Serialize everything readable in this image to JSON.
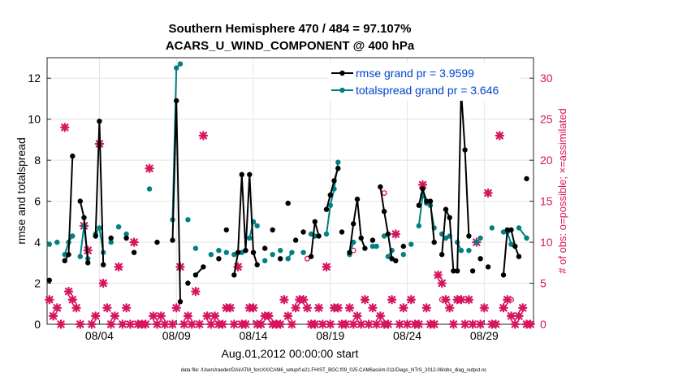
{
  "chart_data": {
    "type": "line",
    "title_line1": "Southern Hemisphere 470 / 484 = 97.107%",
    "title_line2": "ACARS_U_WIND_COMPONENT @ 400 hPa",
    "xlabel": "Aug.01,2012 00:00:00 start",
    "ylabel_left": "rmse and totalspread",
    "ylabel_right": "# of obs: o=possible; ×=assimilated",
    "footer": "data file: /Users/raeder/DAI/ATM_forcXX/CAM6_setup/f.e21.FHIST_BGC.f09_025.CAM6assim.011/Diags_NTrS_2012-08/obs_diag_output.nc",
    "xlim": [
      0.6,
      32.2
    ],
    "ylim_left": [
      0,
      13
    ],
    "ylim_right": [
      0,
      32.5
    ],
    "x_ticks": [
      {
        "v": 4,
        "label": "08/04"
      },
      {
        "v": 9,
        "label": "08/09"
      },
      {
        "v": 14,
        "label": "08/14"
      },
      {
        "v": 19,
        "label": "08/19"
      },
      {
        "v": 24,
        "label": "08/24"
      },
      {
        "v": 29,
        "label": "08/29"
      }
    ],
    "y_ticks_left": [
      "0",
      "2",
      "4",
      "6",
      "8",
      "10",
      "12"
    ],
    "y_ticks_right": [
      "0",
      "5",
      "10",
      "15",
      "20",
      "25",
      "30"
    ],
    "legend": [
      {
        "label": "rmse grand pr = 3.9599",
        "color": "#000000"
      },
      {
        "label": "totalspread grand pr = 3.646",
        "color": "#008080"
      }
    ],
    "colors": {
      "rmse": "#000000",
      "spread": "#008080",
      "obs": "#d6145f",
      "legend_text": "#0044cc"
    },
    "series": [
      {
        "name": "rmse",
        "segments": [
          [
            [
              0.75,
              2.15
            ]
          ],
          [
            [
              1.75,
              3.1
            ],
            [
              2.0,
              3.4
            ],
            [
              2.25,
              8.2
            ]
          ],
          [
            [
              2.75,
              6.0
            ],
            [
              3.0,
              5.2
            ],
            [
              3.25,
              3.0
            ]
          ],
          [
            [
              3.75,
              4.3
            ],
            [
              4.0,
              9.9
            ],
            [
              4.25,
              2.9
            ]
          ],
          [
            [
              4.75,
              4.2
            ]
          ],
          [
            [
              5.75,
              4.2
            ]
          ],
          [
            [
              6.25,
              3.5
            ]
          ],
          [
            [
              7.75,
              4.0
            ]
          ],
          [
            [
              8.75,
              4.1
            ],
            [
              9.0,
              10.9
            ],
            [
              9.25,
              1.1
            ]
          ],
          [
            [
              9.75,
              2.0
            ]
          ],
          [
            [
              10.25,
              2.4
            ],
            [
              10.75,
              2.8
            ]
          ],
          [
            [
              11.75,
              3.2
            ]
          ],
          [
            [
              12.25,
              4.6
            ]
          ],
          [
            [
              12.75,
              2.4
            ],
            [
              13.0,
              3.5
            ],
            [
              13.25,
              7.3
            ],
            [
              13.5,
              3.6
            ],
            [
              13.75,
              7.3
            ],
            [
              14.0,
              3.5
            ],
            [
              14.25,
              2.9
            ]
          ],
          [
            [
              14.75,
              3.7
            ]
          ],
          [
            [
              15.25,
              4.6
            ]
          ],
          [
            [
              15.75,
              3.2
            ]
          ],
          [
            [
              16.25,
              5.9
            ]
          ],
          [
            [
              16.75,
              4.1
            ]
          ],
          [
            [
              17.25,
              4.5
            ]
          ],
          [
            [
              17.75,
              3.3
            ],
            [
              18.0,
              5.0
            ],
            [
              18.25,
              4.3
            ]
          ],
          [
            [
              18.75,
              5.6
            ],
            [
              19.0,
              6.3
            ],
            [
              19.25,
              7.0
            ],
            [
              19.5,
              7.6
            ]
          ],
          [
            [
              19.75,
              4.5
            ]
          ],
          [
            [
              20.25,
              3.5
            ],
            [
              20.5,
              4.9
            ],
            [
              20.75,
              6.1
            ],
            [
              21.0,
              4.2
            ],
            [
              21.25,
              3.7
            ]
          ],
          [
            [
              21.75,
              4.1
            ]
          ],
          [
            [
              22.25,
              6.7
            ],
            [
              22.5,
              5.5
            ],
            [
              22.75,
              4.4
            ],
            [
              23.0,
              3.2
            ],
            [
              23.25,
              3.1
            ]
          ],
          [
            [
              23.75,
              3.8
            ]
          ],
          [
            [
              24.75,
              5.8
            ],
            [
              25.0,
              6.6
            ],
            [
              25.25,
              6.0
            ],
            [
              25.5,
              6.0
            ],
            [
              25.75,
              4.0
            ]
          ],
          [
            [
              26.25,
              3.4
            ],
            [
              26.5,
              5.6
            ],
            [
              26.75,
              5.2
            ],
            [
              27.0,
              2.6
            ],
            [
              27.25,
              2.6
            ],
            [
              27.5,
              11.4
            ],
            [
              27.75,
              8.5
            ],
            [
              28.0,
              4.3
            ]
          ],
          [
            [
              28.25,
              2.6
            ]
          ],
          [
            [
              28.75,
              3.2
            ]
          ],
          [
            [
              29.25,
              2.8
            ]
          ],
          [
            [
              30.25,
              2.4
            ],
            [
              30.5,
              4.6
            ],
            [
              30.75,
              4.6
            ],
            [
              31.0,
              3.8
            ],
            [
              31.25,
              3.3
            ]
          ],
          [
            [
              31.75,
              7.1
            ]
          ]
        ]
      },
      {
        "name": "totalspread",
        "segments": [
          [
            [
              0.75,
              3.9
            ]
          ],
          [
            [
              1.25,
              4.0
            ]
          ],
          [
            [
              1.75,
              3.4
            ],
            [
              2.0,
              4.0
            ],
            [
              2.25,
              4.3
            ]
          ],
          [
            [
              2.75,
              3.3
            ],
            [
              3.0,
              4.8
            ],
            [
              3.25,
              3.2
            ]
          ],
          [
            [
              3.75,
              4.4
            ],
            [
              4.0,
              4.7
            ],
            [
              4.25,
              3.5
            ]
          ],
          [
            [
              4.75,
              4.0
            ]
          ],
          [
            [
              5.25,
              4.75
            ]
          ],
          [
            [
              5.75,
              4.4
            ]
          ],
          [
            [
              7.25,
              6.6
            ]
          ],
          [
            [
              8.75,
              5.1
            ],
            [
              9.0,
              12.5
            ],
            [
              9.25,
              12.7
            ]
          ],
          [
            [
              9.75,
              5.1
            ]
          ],
          [
            [
              10.25,
              3.7
            ]
          ],
          [
            [
              11.25,
              3.4
            ]
          ],
          [
            [
              11.75,
              3.6
            ]
          ],
          [
            [
              12.25,
              3.5
            ]
          ],
          [
            [
              12.75,
              3.4
            ],
            [
              13.25,
              3.5
            ]
          ],
          [
            [
              13.75,
              4.2
            ],
            [
              14.0,
              5.0
            ],
            [
              14.25,
              4.8
            ]
          ],
          [
            [
              14.75,
              3.1
            ]
          ],
          [
            [
              15.25,
              3.4
            ]
          ],
          [
            [
              15.75,
              3.6
            ]
          ],
          [
            [
              16.25,
              3.2
            ],
            [
              16.5,
              3.5
            ]
          ],
          [
            [
              17.25,
              3.5
            ]
          ],
          [
            [
              17.75,
              4.4
            ],
            [
              18.0,
              4.3
            ]
          ],
          [
            [
              18.75,
              4.4
            ],
            [
              19.0,
              5.8
            ],
            [
              19.25,
              6.6
            ],
            [
              19.5,
              7.9
            ]
          ],
          [
            [
              20.25,
              3.4
            ],
            [
              20.5,
              4.0
            ]
          ],
          [
            [
              21.75,
              3.8
            ],
            [
              22.0,
              3.8
            ]
          ],
          [
            [
              22.5,
              4.3
            ]
          ],
          [
            [
              22.75,
              3.3
            ],
            [
              23.0,
              3.6
            ]
          ],
          [
            [
              23.75,
              3.4
            ]
          ],
          [
            [
              24.25,
              3.9
            ]
          ],
          [
            [
              24.75,
              4.8
            ],
            [
              25.0,
              6.3
            ],
            [
              25.25,
              5.9
            ],
            [
              25.5,
              5.8
            ],
            [
              25.75,
              4.7
            ]
          ],
          [
            [
              26.25,
              4.4
            ]
          ],
          [
            [
              26.5,
              4.2
            ]
          ],
          [
            [
              26.75,
              4.3
            ]
          ],
          [
            [
              27.25,
              4.0
            ],
            [
              27.5,
              3.6
            ]
          ],
          [
            [
              28.0,
              3.6
            ]
          ],
          [
            [
              28.5,
              4.0
            ]
          ],
          [
            [
              28.75,
              4.2
            ]
          ],
          [
            [
              29.5,
              4.7
            ]
          ],
          [
            [
              30.25,
              4.5
            ],
            [
              30.5,
              4.5
            ],
            [
              30.75,
              3.9
            ]
          ],
          [
            [
              31.25,
              4.7
            ],
            [
              31.75,
              4.2
            ]
          ]
        ]
      }
    ],
    "obs_assimilated": [
      [
        0.75,
        3
      ],
      [
        1.0,
        1
      ],
      [
        1.25,
        2
      ],
      [
        1.5,
        0
      ],
      [
        1.75,
        24
      ],
      [
        2.0,
        4
      ],
      [
        2.25,
        3
      ],
      [
        2.5,
        2
      ],
      [
        2.75,
        0
      ],
      [
        3.0,
        12
      ],
      [
        3.25,
        9
      ],
      [
        3.5,
        0
      ],
      [
        3.75,
        1
      ],
      [
        4.0,
        22
      ],
      [
        4.25,
        5
      ],
      [
        4.5,
        2
      ],
      [
        4.75,
        0
      ],
      [
        5.0,
        1
      ],
      [
        5.25,
        7
      ],
      [
        5.5,
        0
      ],
      [
        5.75,
        2
      ],
      [
        6.0,
        0
      ],
      [
        6.25,
        10
      ],
      [
        6.5,
        0
      ],
      [
        6.75,
        0
      ],
      [
        7.0,
        0
      ],
      [
        7.25,
        19
      ],
      [
        7.5,
        1
      ],
      [
        7.75,
        0
      ],
      [
        8.0,
        1
      ],
      [
        8.25,
        0
      ],
      [
        8.75,
        0
      ],
      [
        9.0,
        2
      ],
      [
        9.25,
        7
      ],
      [
        9.5,
        0
      ],
      [
        9.75,
        1
      ],
      [
        10.0,
        0
      ],
      [
        10.25,
        4
      ],
      [
        10.5,
        0
      ],
      [
        10.75,
        23
      ],
      [
        11.0,
        1
      ],
      [
        11.25,
        0
      ],
      [
        11.5,
        1
      ],
      [
        11.75,
        0
      ],
      [
        12.0,
        0
      ],
      [
        12.25,
        2
      ],
      [
        12.5,
        2
      ],
      [
        12.75,
        0
      ],
      [
        13.0,
        7
      ],
      [
        13.25,
        0
      ],
      [
        13.5,
        0
      ],
      [
        13.75,
        2
      ],
      [
        14.0,
        2
      ],
      [
        14.25,
        0
      ],
      [
        14.5,
        0
      ],
      [
        14.75,
        1
      ],
      [
        15.0,
        1
      ],
      [
        15.25,
        0
      ],
      [
        15.5,
        0
      ],
      [
        15.75,
        0
      ],
      [
        16.0,
        3
      ],
      [
        16.25,
        1
      ],
      [
        16.5,
        0
      ],
      [
        16.75,
        2
      ],
      [
        17.0,
        3
      ],
      [
        17.25,
        3
      ],
      [
        17.5,
        2
      ],
      [
        17.75,
        0
      ],
      [
        18.0,
        0
      ],
      [
        18.25,
        2
      ],
      [
        18.5,
        0
      ],
      [
        18.75,
        7
      ],
      [
        19.0,
        0
      ],
      [
        19.25,
        2
      ],
      [
        19.5,
        2
      ],
      [
        19.75,
        0
      ],
      [
        20.0,
        0
      ],
      [
        20.25,
        2
      ],
      [
        20.5,
        0
      ],
      [
        20.75,
        1
      ],
      [
        21.0,
        0
      ],
      [
        21.25,
        3
      ],
      [
        21.5,
        0
      ],
      [
        21.75,
        2
      ],
      [
        22.0,
        0
      ],
      [
        22.25,
        1
      ],
      [
        22.5,
        0
      ],
      [
        22.75,
        0
      ],
      [
        23.0,
        3
      ],
      [
        23.25,
        11
      ],
      [
        23.5,
        0
      ],
      [
        23.75,
        2
      ],
      [
        24.0,
        0
      ],
      [
        24.25,
        3
      ],
      [
        24.5,
        0
      ],
      [
        24.75,
        0
      ],
      [
        25.0,
        17
      ],
      [
        25.25,
        2
      ],
      [
        25.5,
        0
      ],
      [
        25.75,
        0
      ],
      [
        26.0,
        6
      ],
      [
        26.25,
        5
      ],
      [
        26.5,
        3
      ],
      [
        26.75,
        2
      ],
      [
        27.0,
        0
      ],
      [
        27.25,
        3
      ],
      [
        27.5,
        3
      ],
      [
        27.75,
        0
      ],
      [
        28.0,
        3
      ],
      [
        28.25,
        0
      ],
      [
        28.5,
        10
      ],
      [
        28.75,
        0
      ],
      [
        29.0,
        2
      ],
      [
        29.25,
        16
      ],
      [
        29.5,
        0
      ],
      [
        29.75,
        0
      ],
      [
        30.0,
        23
      ],
      [
        30.25,
        2
      ],
      [
        30.5,
        3
      ],
      [
        30.75,
        1
      ],
      [
        31.0,
        0
      ],
      [
        31.25,
        1
      ],
      [
        31.5,
        2
      ],
      [
        31.75,
        0
      ],
      [
        32.0,
        0
      ]
    ],
    "obs_possible": [
      [
        17.5,
        8
      ],
      [
        20.5,
        9
      ],
      [
        22.5,
        16
      ],
      [
        26.25,
        3
      ],
      [
        30.75,
        3
      ]
    ]
  }
}
